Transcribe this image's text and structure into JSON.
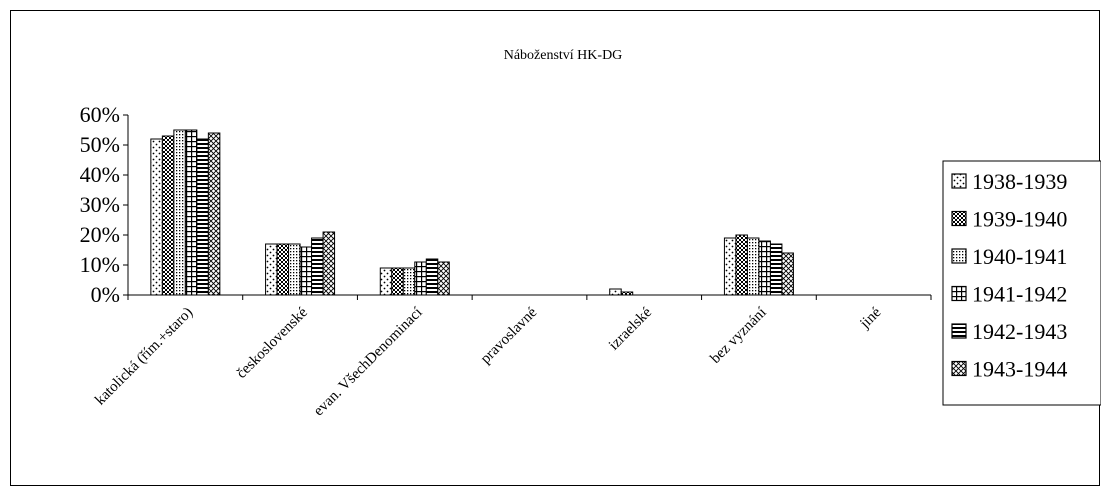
{
  "chart_data": {
    "type": "bar",
    "title": "Náboženství HK-DG",
    "categories": [
      "katolická (řím.+staro)",
      "československé",
      "evan. VšechDenominací",
      "pravoslavné",
      "izraelské",
      "bez vyznání",
      "jiné"
    ],
    "series": [
      {
        "name": "1938-1939",
        "pattern": "dots",
        "values": [
          52,
          17,
          9,
          0,
          2,
          19,
          0
        ]
      },
      {
        "name": "1939-1940",
        "pattern": "checker",
        "values": [
          53,
          17,
          9,
          0,
          1,
          20,
          0
        ]
      },
      {
        "name": "1940-1941",
        "pattern": "dense-dots",
        "values": [
          55,
          17,
          9,
          0,
          0,
          19,
          0
        ]
      },
      {
        "name": "1941-1942",
        "pattern": "grid",
        "values": [
          55,
          16,
          11,
          0,
          0,
          18,
          0
        ]
      },
      {
        "name": "1942-1943",
        "pattern": "hlines",
        "values": [
          52,
          19,
          12,
          0,
          0,
          17,
          0
        ]
      },
      {
        "name": "1943-1944",
        "pattern": "diag",
        "values": [
          54,
          21,
          11,
          0,
          0,
          14,
          0
        ]
      }
    ],
    "ylim": [
      0,
      60
    ],
    "yticks": [
      "0%",
      "10%",
      "20%",
      "30%",
      "40%",
      "50%",
      "60%"
    ],
    "ytick_values": [
      0,
      10,
      20,
      30,
      40,
      50,
      60
    ],
    "grid": false,
    "legend": "right"
  }
}
